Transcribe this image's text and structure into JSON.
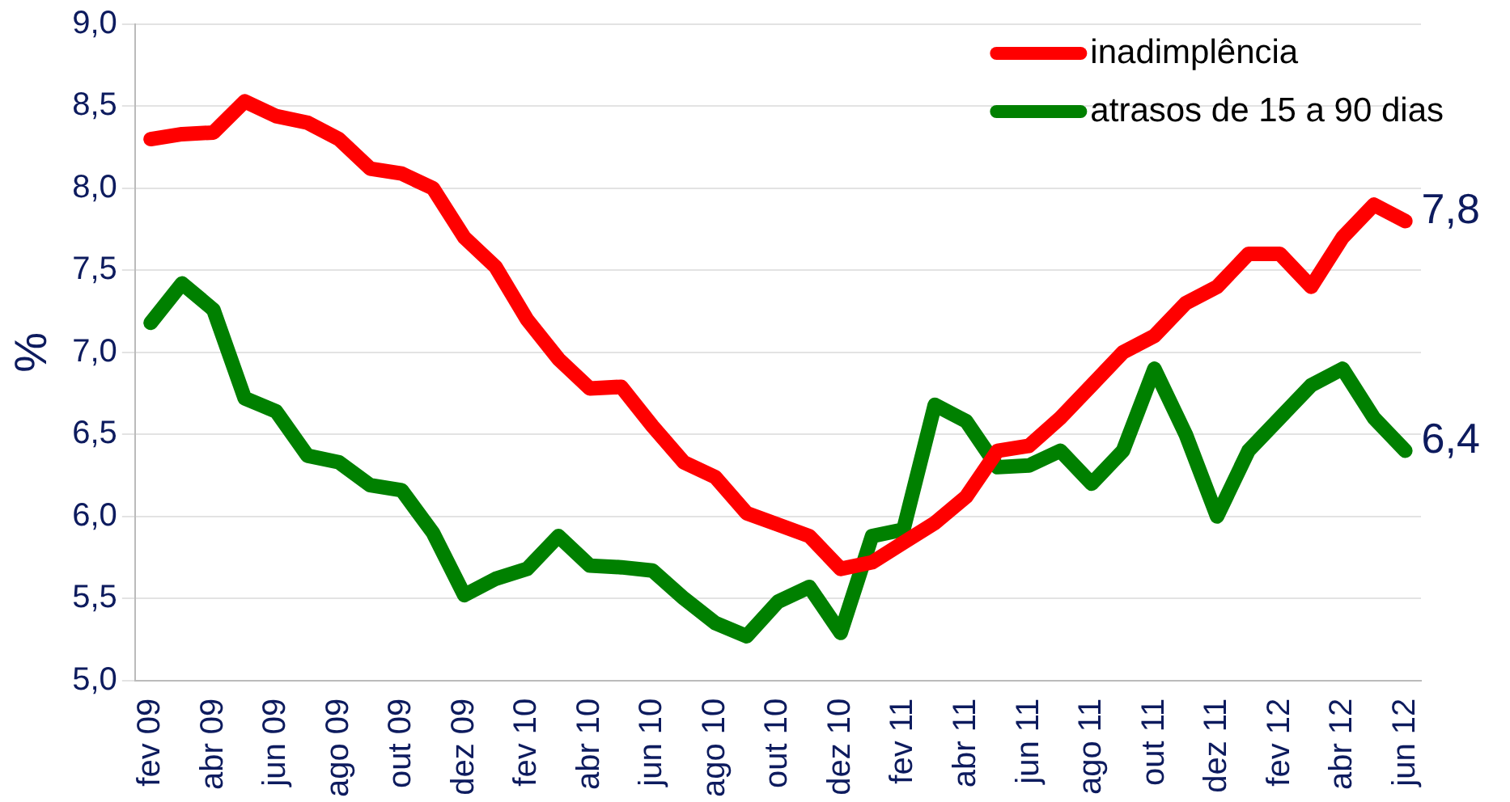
{
  "chart_data": {
    "type": "line",
    "ylabel": "%",
    "categories": [
      "fev 09",
      null,
      "abr 09",
      null,
      "jun 09",
      null,
      "ago 09",
      null,
      "out 09",
      null,
      "dez 09",
      null,
      "fev 10",
      null,
      "abr 10",
      null,
      "jun 10",
      null,
      "ago 10",
      null,
      "out 10",
      null,
      "dez 10",
      null,
      "fev 11",
      null,
      "abr 11",
      null,
      "jun 11",
      null,
      "ago 11",
      null,
      "out 11",
      null,
      "dez 11",
      null,
      "fev 12",
      null,
      "abr 12",
      null,
      "jun 12"
    ],
    "series": [
      {
        "name": "inadimplência",
        "color": "#ff0000",
        "values": [
          8.3,
          8.33,
          8.34,
          8.53,
          8.44,
          8.4,
          8.3,
          8.12,
          8.09,
          8.0,
          7.7,
          7.52,
          7.2,
          6.96,
          6.78,
          6.79,
          6.55,
          6.33,
          6.24,
          6.02,
          5.95,
          5.88,
          5.68,
          5.72,
          5.84,
          5.96,
          6.12,
          6.4,
          6.43,
          6.6,
          6.8,
          7.0,
          7.1,
          7.3,
          7.4,
          7.6,
          7.6,
          7.4,
          7.7,
          7.9,
          7.8
        ],
        "value_labels": [
          null,
          null,
          null,
          null,
          null,
          null,
          null,
          null,
          null,
          null,
          null,
          null,
          null,
          null,
          null,
          null,
          null,
          null,
          null,
          null,
          null,
          null,
          null,
          null,
          null,
          null,
          null,
          null,
          null,
          null,
          null,
          null,
          null,
          null,
          null,
          null,
          null,
          null,
          null,
          null,
          "7,8"
        ]
      },
      {
        "name": "atrasos de 15 a 90 dias",
        "color": "#008000",
        "values": [
          7.18,
          7.42,
          7.26,
          6.72,
          6.64,
          6.37,
          6.33,
          6.19,
          6.16,
          5.9,
          5.52,
          5.62,
          5.68,
          5.88,
          5.7,
          5.69,
          5.67,
          5.5,
          5.35,
          5.27,
          5.48,
          5.57,
          5.29,
          5.88,
          5.92,
          6.68,
          6.58,
          6.3,
          6.31,
          6.4,
          6.2,
          6.4,
          6.9,
          6.5,
          6.0,
          6.4,
          6.6,
          6.8,
          6.9,
          6.6,
          6.4
        ],
        "value_labels": [
          null,
          null,
          null,
          null,
          null,
          null,
          null,
          null,
          null,
          null,
          null,
          null,
          null,
          null,
          null,
          null,
          null,
          null,
          null,
          null,
          null,
          null,
          null,
          null,
          null,
          null,
          null,
          null,
          null,
          null,
          null,
          null,
          null,
          null,
          null,
          null,
          null,
          null,
          null,
          null,
          "6,4"
        ]
      }
    ],
    "ylim": [
      5,
      9
    ],
    "yticks": [
      {
        "value": 5,
        "label": "5,0"
      },
      {
        "value": 5.5,
        "label": "5,5"
      },
      {
        "value": 6,
        "label": "6,0"
      },
      {
        "value": 6.5,
        "label": "6,5"
      },
      {
        "value": 7,
        "label": "7,0"
      },
      {
        "value": 7.5,
        "label": "7,5"
      },
      {
        "value": 8,
        "label": "8,0"
      },
      {
        "value": 8.5,
        "label": "8,5"
      },
      {
        "value": 9,
        "label": "9,0"
      }
    ],
    "grid": "y",
    "legend": "top right",
    "marker": "none",
    "line_style": "solid"
  }
}
